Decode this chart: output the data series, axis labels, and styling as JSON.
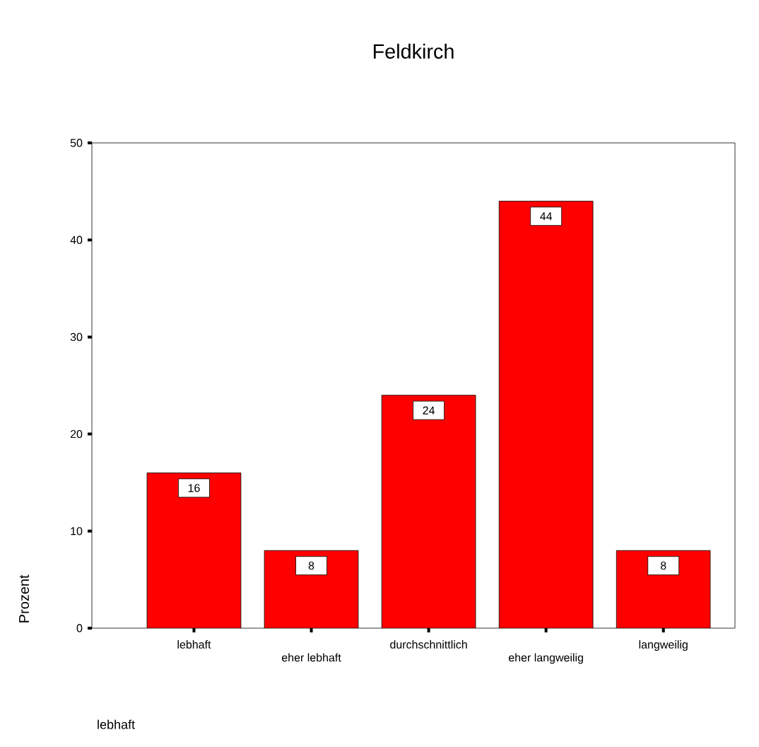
{
  "chart_data": {
    "type": "bar",
    "title": "Feldkirch",
    "annotations": [
      "lebhaft"
    ],
    "ylabel": "Prozent",
    "categories": [
      "lebhaft",
      "eher lebhaft",
      "durchschnittlich",
      "eher langweilig",
      "langweilig"
    ],
    "values": [
      16,
      8,
      24,
      44,
      8
    ],
    "color": "#ff0000",
    "ylim": [
      0,
      50
    ],
    "yticks": [
      0,
      10,
      20,
      30,
      40,
      50
    ],
    "data_labels": true
  }
}
